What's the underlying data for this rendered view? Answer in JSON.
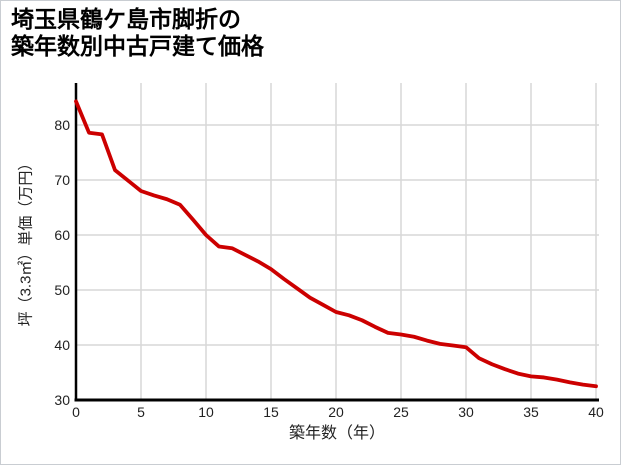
{
  "title": {
    "line1": "埼玉県鶴ケ島市脚折の",
    "line2": "築年数別中古戸建て価格"
  },
  "chart_data": {
    "type": "line",
    "title": "埼玉県鶴ケ島市脚折の築年数別中古戸建て価格",
    "xlabel": "築年数（年）",
    "ylabel": "坪（3.3㎡）単価（万円）",
    "x": [
      0,
      1,
      2,
      3,
      4,
      5,
      6,
      7,
      8,
      9,
      10,
      11,
      12,
      13,
      14,
      15,
      16,
      17,
      18,
      19,
      20,
      21,
      22,
      23,
      24,
      25,
      26,
      27,
      28,
      29,
      30,
      31,
      32,
      33,
      34,
      35,
      36,
      37,
      38,
      39,
      40
    ],
    "series": [
      {
        "name": "中古戸建て価格",
        "color": "#cc0000",
        "values": [
          84.3,
          78.6,
          78.3,
          71.8,
          69.9,
          68.0,
          67.2,
          66.5,
          65.5,
          62.8,
          60.0,
          57.9,
          57.6,
          56.4,
          55.2,
          53.8,
          52.0,
          50.3,
          48.6,
          47.3,
          46.0,
          45.4,
          44.5,
          43.3,
          42.2,
          41.9,
          41.5,
          40.8,
          40.2,
          39.9,
          39.6,
          37.6,
          36.5,
          35.6,
          34.8,
          34.3,
          34.1,
          33.7,
          33.2,
          32.8,
          32.5
        ]
      }
    ],
    "x_ticks": [
      0,
      5,
      10,
      15,
      20,
      25,
      30,
      35,
      40
    ],
    "y_ticks": [
      30,
      40,
      50,
      60,
      70,
      80
    ],
    "xlim": [
      0,
      40
    ],
    "ylim": [
      30,
      86
    ],
    "grid": true,
    "legend_position": "none"
  },
  "colors": {
    "line": "#cc0000",
    "grid": "#d7d7d7",
    "axis": "#000000",
    "text": "#222222",
    "background": "#ffffff",
    "border": "#c9cdd2"
  }
}
